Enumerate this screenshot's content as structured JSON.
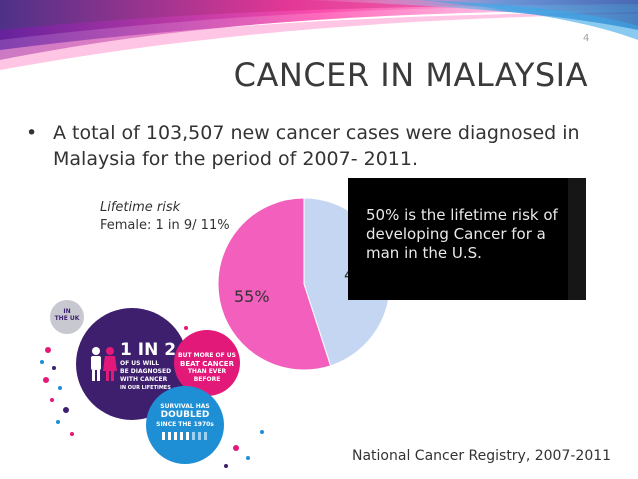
{
  "slide": {
    "page_number": "4",
    "title": "CANCER IN MALAYSIA",
    "bullet_symbol": "•",
    "bullet_text": "A total of 103,507 new cancer cases were diagnosed in Malaysia for the period of 2007- 2011.",
    "lifetime_risk_label": "Lifetime risk",
    "lifetime_risk_value": "Female: 1 in 9/ 11%",
    "source": "National Cancer Registry, 2007-2011"
  },
  "pie": {
    "slices": [
      {
        "label": "55%",
        "value": 55,
        "color": "#f25fbd"
      },
      {
        "label": "45",
        "value": 45,
        "color": "#c4d6f2"
      }
    ]
  },
  "quote_box": {
    "text": "50% is the lifetime risk of developing Cancer for a man in the U.S."
  },
  "infographic": {
    "uk": {
      "line1": "IN",
      "line2": "THE UK"
    },
    "main": {
      "big": "1 IN 2",
      "lines": [
        "OF US WILL",
        "BE DIAGNOSED",
        "WITH CANCER",
        "IN OUR LIFETIMES"
      ]
    },
    "beat": {
      "lines": [
        "BUT MORE OF US",
        "BEAT CANCER",
        "THAN EVER BEFORE"
      ]
    },
    "survival": {
      "lines": [
        "SURVIVAL HAS",
        "DOUBLED",
        "SINCE THE 1970s"
      ]
    },
    "colors": {
      "purple": "#3d1f6e",
      "pink": "#e3197a",
      "blue": "#1e8fd5",
      "grey": "#c8c8d0"
    }
  }
}
